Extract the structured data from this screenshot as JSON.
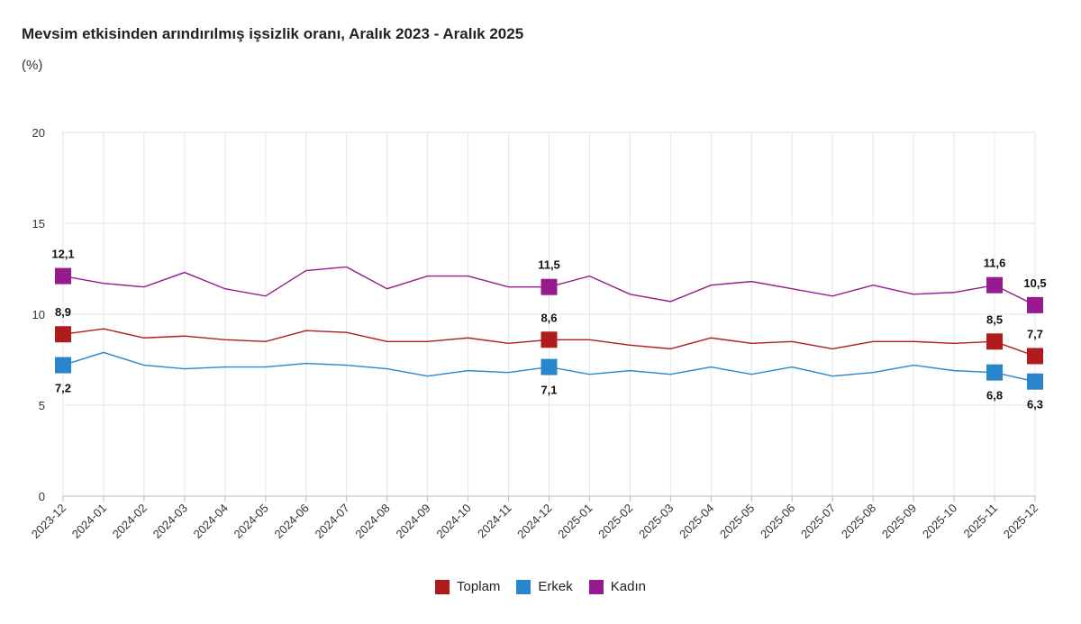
{
  "chart_data": {
    "type": "line",
    "title": "Mevsim etkisinden arındırılmış işsizlik oranı, Aralık 2023 - Aralık 2025",
    "ylabel": "(%)",
    "xlabel": "",
    "ylim": [
      0,
      20
    ],
    "yticks": [
      0,
      5,
      10,
      15,
      20
    ],
    "grid": true,
    "legend": "bottom",
    "categories": [
      "2023-12",
      "2024-01",
      "2024-02",
      "2024-03",
      "2024-04",
      "2024-05",
      "2024-06",
      "2024-07",
      "2024-08",
      "2024-09",
      "2024-10",
      "2024-11",
      "2024-12",
      "2025-01",
      "2025-02",
      "2025-03",
      "2025-04",
      "2025-05",
      "2025-06",
      "2025-07",
      "2025-08",
      "2025-09",
      "2025-10",
      "2025-11",
      "2025-12"
    ],
    "labeled_points": [
      0,
      12,
      23,
      24
    ],
    "series": [
      {
        "name": "Toplam",
        "color": "#b01c1c",
        "label_pos": "above",
        "values": [
          8.9,
          9.2,
          8.7,
          8.8,
          8.6,
          8.5,
          9.1,
          9.0,
          8.5,
          8.5,
          8.7,
          8.4,
          8.6,
          8.6,
          8.3,
          8.1,
          8.7,
          8.4,
          8.5,
          8.1,
          8.5,
          8.5,
          8.4,
          8.5,
          7.7
        ],
        "labels": [
          "8,9",
          "8,6",
          "8,5",
          "7,7"
        ]
      },
      {
        "name": "Erkek",
        "color": "#2a86cc",
        "label_pos": "below",
        "values": [
          7.2,
          7.9,
          7.2,
          7.0,
          7.1,
          7.1,
          7.3,
          7.2,
          7.0,
          6.6,
          6.9,
          6.8,
          7.1,
          6.7,
          6.9,
          6.7,
          7.1,
          6.7,
          7.1,
          6.6,
          6.8,
          7.2,
          6.9,
          6.8,
          6.3
        ],
        "labels": [
          "7,2",
          "7,1",
          "6,8",
          "6,3"
        ]
      },
      {
        "name": "Kadın",
        "color": "#951b8e",
        "label_pos": "above",
        "values": [
          12.1,
          11.7,
          11.5,
          12.3,
          11.4,
          11.0,
          12.4,
          12.6,
          11.4,
          12.1,
          12.1,
          11.5,
          11.5,
          12.1,
          11.1,
          10.7,
          11.6,
          11.8,
          11.4,
          11.0,
          11.6,
          11.1,
          11.2,
          11.6,
          10.5
        ],
        "labels": [
          "12,1",
          "11,5",
          "11,6",
          "10,5"
        ]
      }
    ]
  }
}
